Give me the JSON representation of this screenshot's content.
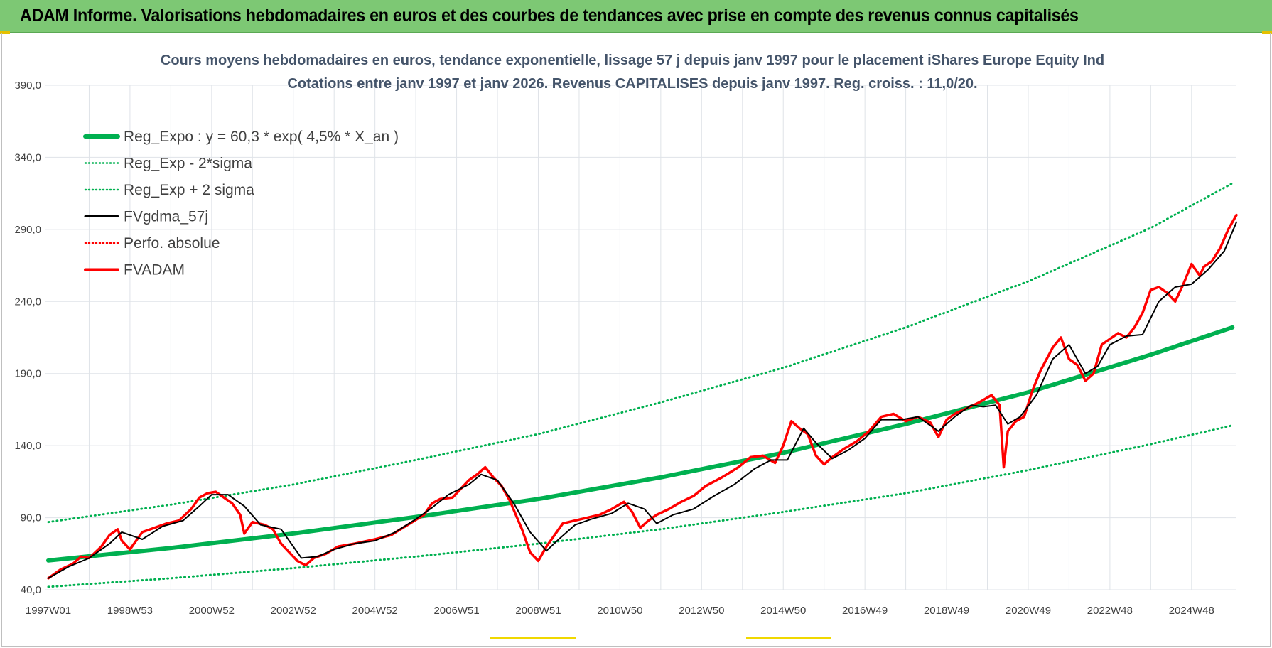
{
  "banner": {
    "title": "ADAM Informe. Valorisations hebdomadaires en euros et des courbes de tendances avec prise en compte des revenus connus capitalisés"
  },
  "chart_data": {
    "type": "line",
    "title": "Cours moyens hebdomadaires en euros, tendance exponentielle, lissage 57 j depuis janv 1997 pour le placement iShares Europe Equity Ind",
    "subtitle": "Cotations entre janv 1997 et janv 2026. Revenus CAPITALISES depuis janv 1997. Reg. croiss. : 11,0/20.",
    "xlabel": "",
    "ylabel": "",
    "ylim": [
      40,
      390
    ],
    "xlim": [
      1997.0,
      2026.1
    ],
    "grid": true,
    "legend_position": "top-left",
    "y_ticks": [
      "40,0",
      "90,0",
      "140,0",
      "190,0",
      "240,0",
      "290,0",
      "340,0",
      "390,0"
    ],
    "x_ticks": [
      {
        "label": "1997W01",
        "x": 1997.0
      },
      {
        "label": "1998W53",
        "x": 1999.0
      },
      {
        "label": "2000W52",
        "x": 2001.0
      },
      {
        "label": "2002W52",
        "x": 2003.0
      },
      {
        "label": "2004W52",
        "x": 2005.0
      },
      {
        "label": "2006W51",
        "x": 2007.0
      },
      {
        "label": "2008W51",
        "x": 2009.0
      },
      {
        "label": "2010W50",
        "x": 2011.0
      },
      {
        "label": "2012W50",
        "x": 2013.0
      },
      {
        "label": "2014W50",
        "x": 2015.0
      },
      {
        "label": "2016W49",
        "x": 2017.0
      },
      {
        "label": "2018W49",
        "x": 2019.0
      },
      {
        "label": "2020W49",
        "x": 2021.0
      },
      {
        "label": "2022W48",
        "x": 2023.0
      },
      {
        "label": "2024W48",
        "x": 2025.0
      }
    ],
    "series": [
      {
        "name": "Reg_Expo : y = 60,3 * exp( 4,5% *  X_an )",
        "color": "#00b050",
        "style": "solid-thick",
        "x": [
          1997.0,
          2000.0,
          2003.0,
          2006.0,
          2009.0,
          2012.0,
          2015.0,
          2018.0,
          2021.0,
          2024.0,
          2026.0
        ],
        "y": [
          60.3,
          69.0,
          79.0,
          90.5,
          103.0,
          118.0,
          135.0,
          155.0,
          177.0,
          203.0,
          222.0
        ]
      },
      {
        "name": "Reg_Exp - 2*sigma",
        "color": "#00b050",
        "style": "dotted",
        "x": [
          1997.0,
          2000.0,
          2003.0,
          2006.0,
          2009.0,
          2012.0,
          2015.0,
          2018.0,
          2021.0,
          2024.0,
          2026.0
        ],
        "y": [
          42.0,
          48.0,
          55.0,
          63.0,
          72.0,
          82.0,
          94.0,
          107.0,
          123.0,
          141.0,
          154.0
        ]
      },
      {
        "name": "Reg_Exp + 2 sigma",
        "color": "#00b050",
        "style": "dotted",
        "x": [
          1997.0,
          2000.0,
          2003.0,
          2006.0,
          2009.0,
          2012.0,
          2015.0,
          2018.0,
          2021.0,
          2024.0,
          2026.0
        ],
        "y": [
          87.0,
          99.0,
          113.0,
          130.0,
          148.0,
          170.0,
          194.0,
          222.0,
          254.0,
          291.0,
          322.0
        ]
      },
      {
        "name": "FVgdma_57j",
        "color": "#000000",
        "style": "solid",
        "x": [
          1997.0,
          1997.5,
          1998.0,
          1998.5,
          1998.8,
          1999.3,
          1999.8,
          2000.3,
          2000.7,
          2001.0,
          2001.4,
          2001.8,
          2002.2,
          2002.7,
          2003.2,
          2003.6,
          2004.0,
          2004.5,
          2005.0,
          2005.5,
          2006.0,
          2006.4,
          2006.8,
          2007.3,
          2007.6,
          2008.0,
          2008.4,
          2008.8,
          2009.2,
          2009.5,
          2009.9,
          2010.3,
          2010.8,
          2011.2,
          2011.6,
          2011.9,
          2012.3,
          2012.8,
          2013.3,
          2013.8,
          2014.3,
          2014.7,
          2015.1,
          2015.5,
          2015.8,
          2016.2,
          2016.6,
          2017.0,
          2017.4,
          2017.9,
          2018.3,
          2018.8,
          2019.2,
          2019.6,
          2019.9,
          2020.2,
          2020.5,
          2020.8,
          2021.2,
          2021.6,
          2022.0,
          2022.4,
          2022.7,
          2023.0,
          2023.4,
          2023.8,
          2024.2,
          2024.6,
          2025.0,
          2025.4,
          2025.8,
          2026.1
        ],
        "y": [
          48.0,
          56.0,
          62.0,
          72.0,
          80.0,
          75.0,
          84.0,
          88.0,
          98.0,
          106.0,
          106.0,
          98.0,
          85.0,
          82.0,
          62.0,
          63.0,
          68.0,
          72.0,
          74.0,
          80.0,
          89.0,
          97.0,
          106.0,
          113.0,
          120.0,
          116.0,
          100.0,
          80.0,
          67.0,
          75.0,
          85.0,
          89.0,
          93.0,
          100.0,
          96.0,
          86.0,
          92.0,
          96.0,
          105.0,
          113.0,
          124.0,
          130.0,
          130.0,
          152.0,
          142.0,
          131.0,
          137.0,
          145.0,
          158.0,
          158.0,
          160.0,
          150.0,
          160.0,
          168.0,
          167.0,
          168.0,
          155.0,
          160.0,
          175.0,
          200.0,
          210.0,
          190.0,
          195.0,
          210.0,
          216.0,
          217.0,
          240.0,
          250.0,
          252.0,
          262.0,
          275.0,
          295.0
        ]
      },
      {
        "name": "Perfo. absolue",
        "color": "#ff0000",
        "style": "dotted",
        "x": [],
        "y": []
      },
      {
        "name": "FVADAM",
        "color": "#ff0000",
        "style": "solid-thick",
        "x": [
          1997.0,
          1997.3,
          1997.6,
          1997.8,
          1998.0,
          1998.3,
          1998.5,
          1998.7,
          1998.8,
          1999.0,
          1999.3,
          1999.6,
          1999.9,
          2000.2,
          2000.5,
          2000.7,
          2000.9,
          2001.1,
          2001.3,
          2001.5,
          2001.7,
          2001.8,
          2002.0,
          2002.3,
          2002.5,
          2002.7,
          2002.9,
          2003.1,
          2003.3,
          2003.5,
          2003.8,
          2004.1,
          2004.5,
          2005.0,
          2005.4,
          2005.8,
          2006.2,
          2006.4,
          2006.6,
          2006.9,
          2007.1,
          2007.3,
          2007.5,
          2007.7,
          2007.9,
          2008.1,
          2008.3,
          2008.6,
          2008.8,
          2009.0,
          2009.2,
          2009.4,
          2009.6,
          2009.9,
          2010.2,
          2010.5,
          2010.8,
          2011.1,
          2011.3,
          2011.5,
          2011.7,
          2011.9,
          2012.2,
          2012.5,
          2012.8,
          2013.1,
          2013.5,
          2013.9,
          2014.2,
          2014.5,
          2014.8,
          2015.0,
          2015.2,
          2015.4,
          2015.6,
          2015.8,
          2016.0,
          2016.2,
          2016.5,
          2016.8,
          2017.1,
          2017.4,
          2017.7,
          2018.0,
          2018.3,
          2018.6,
          2018.8,
          2019.0,
          2019.2,
          2019.5,
          2019.8,
          2020.1,
          2020.3,
          2020.4,
          2020.5,
          2020.7,
          2020.9,
          2021.1,
          2021.3,
          2021.6,
          2021.8,
          2022.0,
          2022.2,
          2022.4,
          2022.6,
          2022.8,
          2023.0,
          2023.2,
          2023.4,
          2023.6,
          2023.8,
          2024.0,
          2024.2,
          2024.4,
          2024.6,
          2024.8,
          2025.0,
          2025.2,
          2025.3,
          2025.5,
          2025.7,
          2025.9,
          2026.1
        ],
        "y": [
          48.0,
          54.0,
          58.0,
          63.0,
          62.0,
          70.0,
          78.0,
          82.0,
          74.0,
          68.0,
          80.0,
          83.0,
          86.0,
          88.0,
          96.0,
          104.0,
          107.0,
          108.0,
          104.0,
          100.0,
          92.0,
          79.0,
          87.0,
          85.0,
          82.0,
          72.0,
          66.0,
          60.0,
          57.0,
          62.0,
          65.0,
          70.0,
          72.0,
          75.0,
          78.0,
          85.0,
          92.0,
          100.0,
          103.0,
          104.0,
          110.0,
          116.0,
          120.0,
          125.0,
          118.0,
          112.0,
          102.0,
          82.0,
          66.0,
          60.0,
          70.0,
          78.0,
          86.0,
          88.0,
          90.0,
          92.0,
          96.0,
          101.0,
          94.0,
          83.0,
          88.0,
          92.0,
          96.0,
          101.0,
          105.0,
          112.0,
          118.0,
          125.0,
          132.0,
          133.0,
          128.0,
          140.0,
          157.0,
          152.0,
          148.0,
          133.0,
          127.0,
          132.0,
          138.0,
          143.0,
          150.0,
          160.0,
          162.0,
          157.0,
          160.0,
          156.0,
          146.0,
          158.0,
          162.0,
          166.0,
          170.0,
          175.0,
          168.0,
          125.0,
          150.0,
          157.0,
          160.0,
          178.0,
          192.0,
          208.0,
          215.0,
          200.0,
          196.0,
          185.0,
          190.0,
          210.0,
          214.0,
          218.0,
          215.0,
          222.0,
          232.0,
          248.0,
          250.0,
          246.0,
          240.0,
          252.0,
          266.0,
          258.0,
          264.0,
          268.0,
          277.0,
          290.0,
          300.0
        ]
      }
    ]
  }
}
